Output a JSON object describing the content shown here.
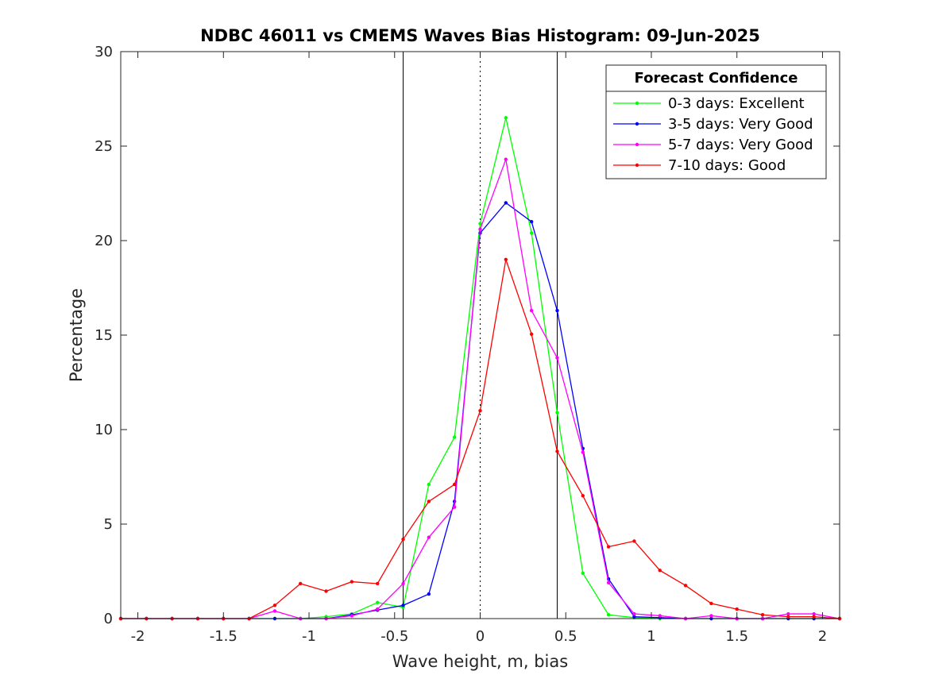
{
  "chart_data": {
    "type": "line",
    "title": "NDBC 46011 vs CMEMS Waves Bias Histogram: 09-Jun-2025",
    "xlabel": "Wave height, m, bias",
    "ylabel": "Percentage",
    "xlim": [
      -2.1,
      2.1
    ],
    "ylim": [
      0,
      30
    ],
    "xticks": [
      -2,
      -1.5,
      -1,
      -0.5,
      0,
      0.5,
      1,
      1.5,
      2
    ],
    "xtick_labels": [
      "-2",
      "-1.5",
      "-1",
      "-0.5",
      "0",
      "0.5",
      "1",
      "1.5",
      "2"
    ],
    "yticks": [
      0,
      5,
      10,
      15,
      20,
      25,
      30
    ],
    "ytick_labels": [
      "0",
      "5",
      "10",
      "15",
      "20",
      "25",
      "30"
    ],
    "grid": false,
    "reference_lines": [
      {
        "x": -0.45,
        "style": "solid",
        "color": "#000000"
      },
      {
        "x": 0,
        "style": "dotted",
        "color": "#000000"
      },
      {
        "x": 0.45,
        "style": "solid",
        "color": "#000000"
      }
    ],
    "legend": {
      "title": "Forecast Confidence",
      "location": "top-right"
    },
    "x": [
      -2.1,
      -1.95,
      -1.8,
      -1.65,
      -1.5,
      -1.35,
      -1.2,
      -1.05,
      -0.9,
      -0.75,
      -0.6,
      -0.45,
      -0.3,
      -0.15,
      0,
      0.15,
      0.3,
      0.45,
      0.6,
      0.75,
      0.9,
      1.05,
      1.2,
      1.35,
      1.5,
      1.65,
      1.8,
      1.95,
      2.1
    ],
    "series": [
      {
        "name": "0-3 days: Excellent",
        "color": "#00ff00",
        "values": [
          0,
          0,
          0,
          0,
          0,
          0,
          0,
          0,
          0.1,
          0.25,
          0.85,
          0.6,
          7.1,
          9.6,
          20.9,
          26.5,
          20.4,
          10.9,
          2.4,
          0.2,
          0.05,
          0,
          0,
          0,
          0,
          0,
          0,
          0,
          0
        ]
      },
      {
        "name": "3-5 days: Very Good",
        "color": "#0000ff",
        "values": [
          0,
          0,
          0,
          0,
          0,
          0,
          0,
          0,
          0,
          0.2,
          0.45,
          0.7,
          1.3,
          6.2,
          20.4,
          22.0,
          21.0,
          16.3,
          9.0,
          2.1,
          0.1,
          0.05,
          0,
          0,
          0,
          0,
          0,
          0,
          0
        ]
      },
      {
        "name": "5-7 days: Very Good",
        "color": "#ff00ff",
        "values": [
          0,
          0,
          0,
          0,
          0,
          0,
          0.4,
          0,
          0,
          0.15,
          0.5,
          1.85,
          4.3,
          5.9,
          20.6,
          24.3,
          16.3,
          13.8,
          8.8,
          1.9,
          0.25,
          0.15,
          0,
          0.15,
          0,
          0,
          0.25,
          0.25,
          0
        ]
      },
      {
        "name": "7-10 days: Good",
        "color": "#ff0000",
        "values": [
          0,
          0,
          0,
          0,
          0,
          0,
          0.7,
          1.85,
          1.45,
          1.95,
          1.85,
          4.2,
          6.2,
          7.1,
          11.0,
          19.0,
          15.05,
          8.85,
          6.5,
          3.8,
          4.1,
          2.55,
          1.75,
          0.8,
          0.5,
          0.2,
          0.1,
          0.1,
          0
        ]
      }
    ]
  }
}
